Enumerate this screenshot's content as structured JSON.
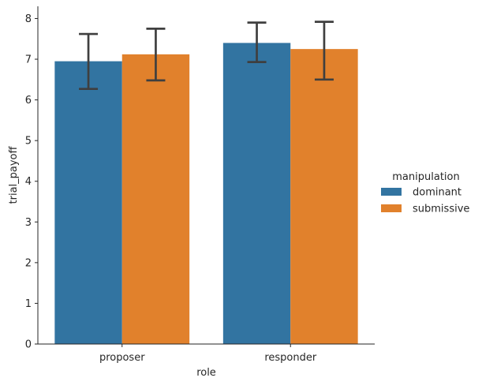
{
  "chart_data": {
    "type": "bar",
    "title": "",
    "xlabel": "role",
    "ylabel": "trial_payoff",
    "categories": [
      "proposer",
      "responder"
    ],
    "ylim": [
      0,
      8.3
    ],
    "yticks": [
      "0",
      "1",
      "2",
      "3",
      "4",
      "5",
      "6",
      "7",
      "8"
    ],
    "grid": false,
    "legend": {
      "title": "manipulation",
      "placement": "right"
    },
    "series": [
      {
        "name": "dominant",
        "color": "#3274a1",
        "values": [
          6.95,
          7.4
        ],
        "error_low": [
          6.27,
          6.93
        ],
        "error_high": [
          7.62,
          7.9
        ]
      },
      {
        "name": "submissive",
        "color": "#e1812c",
        "values": [
          7.12,
          7.25
        ],
        "error_low": [
          6.48,
          6.5
        ],
        "error_high": [
          7.75,
          7.92
        ]
      }
    ],
    "errorbar_color": "#3f3f3f"
  }
}
